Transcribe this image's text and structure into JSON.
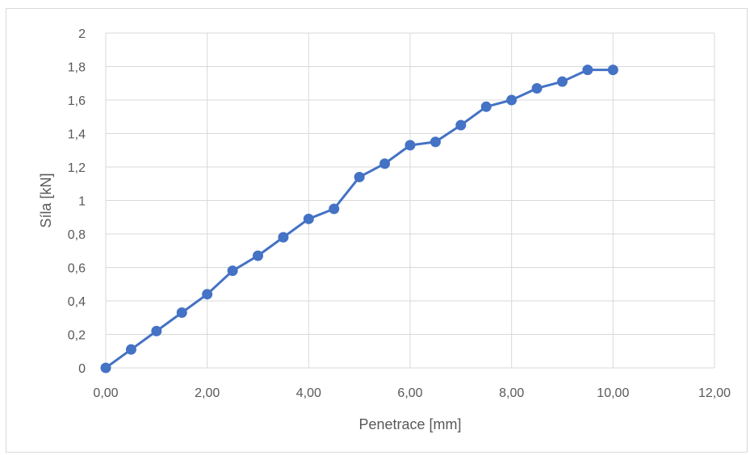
{
  "chart_data": {
    "type": "line",
    "title": "",
    "xlabel": "Penetrace [mm]",
    "ylabel": "Síla [kN]",
    "xlim": [
      0,
      12
    ],
    "ylim": [
      0,
      2
    ],
    "x_ticks": [
      "0,00",
      "2,00",
      "4,00",
      "6,00",
      "8,00",
      "10,00",
      "12,00"
    ],
    "y_ticks": [
      "0",
      "0,2",
      "0,4",
      "0,6",
      "0,8",
      "1",
      "1,2",
      "1,4",
      "1,6",
      "1,8",
      "2"
    ],
    "grid": true,
    "legend": "none",
    "series": [
      {
        "color": "#4472c4",
        "marker": "circle",
        "x": [
          0,
          0.5,
          1,
          1.5,
          2,
          2.5,
          3,
          3.5,
          4,
          4.5,
          5,
          5.5,
          6,
          6.5,
          7,
          7.5,
          8,
          8.5,
          9,
          9.5,
          10
        ],
        "y": [
          0,
          0.11,
          0.22,
          0.33,
          0.44,
          0.58,
          0.67,
          0.78,
          0.89,
          0.95,
          1.14,
          1.22,
          1.33,
          1.35,
          1.45,
          1.56,
          1.6,
          1.67,
          1.71,
          1.78,
          1.78
        ]
      }
    ],
    "gridline_color": "#d9d9d9",
    "text_color": "#595959"
  }
}
